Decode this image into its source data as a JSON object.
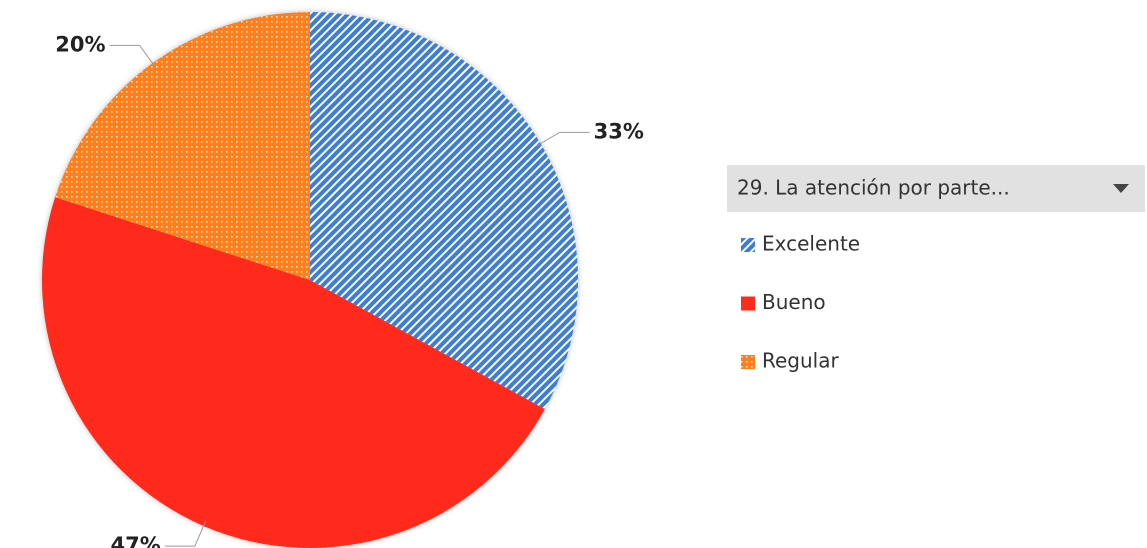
{
  "chart_data": {
    "type": "pie",
    "legend_title": "29.  La atención por parte...",
    "categories": [
      "Excelente",
      "Bueno",
      "Regular"
    ],
    "values": [
      33,
      47,
      20
    ],
    "value_labels": [
      "33%",
      "47%",
      "20%"
    ],
    "colors": [
      "#3b7dd8",
      "#ff2b1c",
      "#ff7f1f"
    ],
    "patterns": [
      "hatch",
      "solid",
      "dots"
    ],
    "legend": "right"
  }
}
